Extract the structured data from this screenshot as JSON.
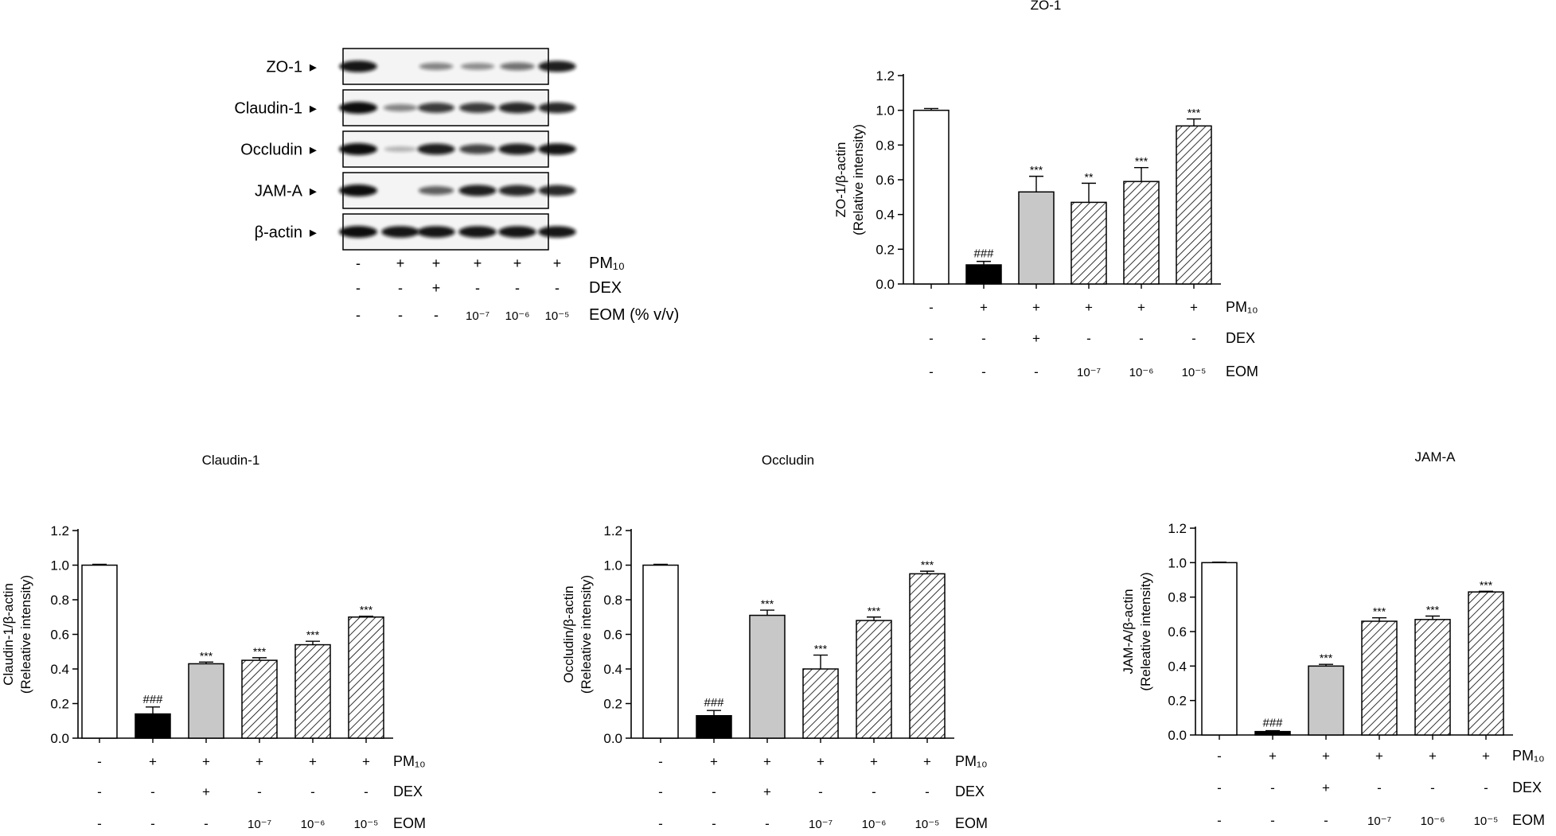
{
  "blot": {
    "band_labels": [
      "ZO-1",
      "Claudin-1",
      "Occludin",
      "JAM-A",
      "β-actin"
    ],
    "treatment_rows": [
      {
        "label": "PM₁₀",
        "values": [
          "-",
          "+",
          "+",
          "+",
          "+",
          "+"
        ]
      },
      {
        "label": "DEX",
        "values": [
          "-",
          "-",
          "+",
          "-",
          "-",
          "-"
        ]
      },
      {
        "label": "EOM (% v/v)",
        "values": [
          "-",
          "-",
          "-",
          "10⁻⁷",
          "10⁻⁶",
          "10⁻⁵"
        ]
      }
    ],
    "band_intensities": [
      [
        0.95,
        0.0,
        0.35,
        0.3,
        0.45,
        0.9
      ],
      [
        1.0,
        0.35,
        0.75,
        0.75,
        0.85,
        0.85
      ],
      [
        1.0,
        0.1,
        0.9,
        0.7,
        0.9,
        0.95
      ],
      [
        1.0,
        0.0,
        0.55,
        0.9,
        0.85,
        0.85
      ],
      [
        1.0,
        0.95,
        0.95,
        0.95,
        0.95,
        0.95
      ]
    ]
  },
  "colors": {
    "control": "#ffffff",
    "pm10": "#000000",
    "dex": "#c8c8c8",
    "eom": "hatch",
    "axis": "#000000"
  },
  "chart_data": [
    {
      "type": "bar",
      "title": "ZO-1",
      "ylabel": "ZO-1/β-actin\n(Relative intensity)",
      "ylim": [
        0,
        1.2
      ],
      "yticks": [
        "0.0",
        "0.2",
        "0.4",
        "0.6",
        "0.8",
        "1.0",
        "1.2"
      ],
      "values": [
        1.0,
        0.11,
        0.53,
        0.47,
        0.59,
        0.91
      ],
      "errors": [
        0.01,
        0.02,
        0.09,
        0.11,
        0.08,
        0.04
      ],
      "annotations": [
        "",
        "###",
        "***",
        "**",
        "***",
        "***"
      ],
      "styles": [
        "control",
        "pm10",
        "dex",
        "eom",
        "eom",
        "eom"
      ],
      "treatment_rows": [
        {
          "label": "PM₁₀",
          "values": [
            "-",
            "+",
            "+",
            "+",
            "+",
            "+"
          ]
        },
        {
          "label": "DEX",
          "values": [
            "-",
            "-",
            "+",
            "-",
            "-",
            "-"
          ]
        },
        {
          "label": "EOM",
          "values": [
            "-",
            "-",
            "-",
            "10⁻⁷",
            "10⁻⁶",
            "10⁻⁵"
          ]
        }
      ]
    },
    {
      "type": "bar",
      "title": "Claudin-1",
      "ylabel": "Claudin-1/β-actin\n(Releative intensity)",
      "ylim": [
        0,
        1.2
      ],
      "yticks": [
        "0.0",
        "0.2",
        "0.4",
        "0.6",
        "0.8",
        "1.0",
        "1.2"
      ],
      "values": [
        1.0,
        0.14,
        0.43,
        0.45,
        0.54,
        0.7
      ],
      "errors": [
        0.005,
        0.04,
        0.01,
        0.015,
        0.02,
        0.005
      ],
      "annotations": [
        "",
        "###",
        "***",
        "***",
        "***",
        "***"
      ],
      "styles": [
        "control",
        "pm10",
        "dex",
        "eom",
        "eom",
        "eom"
      ],
      "treatment_rows": [
        {
          "label": "PM₁₀",
          "values": [
            "-",
            "+",
            "+",
            "+",
            "+",
            "+"
          ]
        },
        {
          "label": "DEX",
          "values": [
            "-",
            "-",
            "+",
            "-",
            "-",
            "-"
          ]
        },
        {
          "label": "EOM",
          "values": [
            "-",
            "-",
            "-",
            "10⁻⁷",
            "10⁻⁶",
            "10⁻⁵"
          ]
        }
      ]
    },
    {
      "type": "bar",
      "title": "Occludin",
      "ylabel": "Occludin/β-actin\n(Releative intensity)",
      "ylim": [
        0,
        1.2
      ],
      "yticks": [
        "0.0",
        "0.2",
        "0.4",
        "0.6",
        "0.8",
        "1.0",
        "1.2"
      ],
      "values": [
        1.0,
        0.13,
        0.71,
        0.4,
        0.68,
        0.95
      ],
      "errors": [
        0.005,
        0.03,
        0.03,
        0.08,
        0.02,
        0.015
      ],
      "annotations": [
        "",
        "###",
        "***",
        "***",
        "***",
        "***"
      ],
      "styles": [
        "control",
        "pm10",
        "dex",
        "eom",
        "eom",
        "eom"
      ],
      "treatment_rows": [
        {
          "label": "PM₁₀",
          "values": [
            "-",
            "+",
            "+",
            "+",
            "+",
            "+"
          ]
        },
        {
          "label": "DEX",
          "values": [
            "-",
            "-",
            "+",
            "-",
            "-",
            "-"
          ]
        },
        {
          "label": "EOM",
          "values": [
            "-",
            "-",
            "-",
            "10⁻⁷",
            "10⁻⁶",
            "10⁻⁵"
          ]
        }
      ]
    },
    {
      "type": "bar",
      "title": "JAM-A",
      "ylabel": "JAM-A/β-actin\n(Releative intensity)",
      "ylim": [
        0,
        1.2
      ],
      "yticks": [
        "0.0",
        "0.2",
        "0.4",
        "0.6",
        "0.8",
        "1.0",
        "1.2"
      ],
      "values": [
        1.0,
        0.02,
        0.4,
        0.66,
        0.67,
        0.83
      ],
      "errors": [
        0.003,
        0.005,
        0.01,
        0.02,
        0.02,
        0.004
      ],
      "annotations": [
        "",
        "###",
        "***",
        "***",
        "***",
        "***"
      ],
      "styles": [
        "control",
        "pm10",
        "dex",
        "eom",
        "eom",
        "eom"
      ],
      "treatment_rows": [
        {
          "label": "PM₁₀",
          "values": [
            "-",
            "+",
            "+",
            "+",
            "+",
            "+"
          ]
        },
        {
          "label": "DEX",
          "values": [
            "-",
            "-",
            "+",
            "-",
            "-",
            "-"
          ]
        },
        {
          "label": "EOM",
          "values": [
            "-",
            "-",
            "-",
            "10⁻⁷",
            "10⁻⁶",
            "10⁻⁵"
          ]
        }
      ]
    }
  ]
}
